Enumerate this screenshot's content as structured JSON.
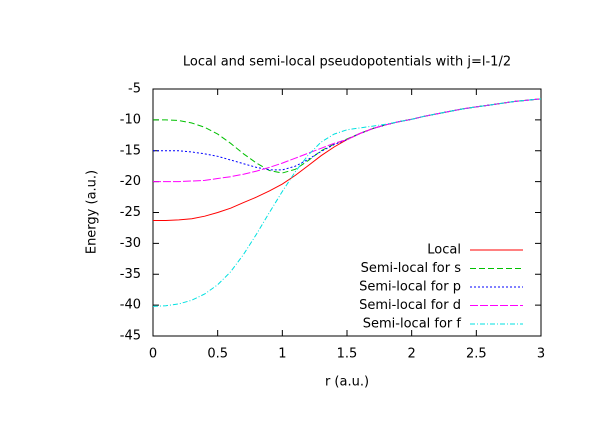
{
  "chart_data": {
    "type": "line",
    "title": "Local and semi-local pseudopotentials with j=l-1/2",
    "x_label": "r (a.u.)",
    "y_label": "Energy (a.u.)",
    "x": [
      0,
      0.1,
      0.2,
      0.3,
      0.4,
      0.5,
      0.6,
      0.7,
      0.8,
      0.9,
      1.0,
      1.1,
      1.2,
      1.3,
      1.4,
      1.5,
      1.6,
      1.7,
      1.8,
      1.9,
      2.0,
      2.1,
      2.2,
      2.3,
      2.4,
      2.5,
      2.6,
      2.7,
      2.8,
      2.9,
      3.0
    ],
    "series": [
      {
        "name": "Local",
        "color": "#ff0000",
        "dash": "none",
        "values": [
          -26.3,
          -26.3,
          -26.2,
          -26.0,
          -25.6,
          -25.0,
          -24.3,
          -23.4,
          -22.5,
          -21.5,
          -20.4,
          -19.0,
          -17.4,
          -15.8,
          -14.4,
          -13.2,
          -12.2,
          -11.4,
          -10.8,
          -10.3,
          -9.9,
          -9.4,
          -9.0,
          -8.6,
          -8.2,
          -7.9,
          -7.6,
          -7.3,
          -7.0,
          -6.8,
          -6.6
        ]
      },
      {
        "name": "Semi-local for s",
        "color": "#00c000",
        "dash": "6,3",
        "values": [
          -10.0,
          -10.0,
          -10.1,
          -10.5,
          -11.2,
          -12.3,
          -13.8,
          -15.5,
          -17.0,
          -18.2,
          -18.6,
          -18.0,
          -16.6,
          -15.0,
          -13.9,
          -13.1,
          -12.2,
          -11.4,
          -10.8,
          -10.3,
          -9.9,
          -9.4,
          -9.0,
          -8.6,
          -8.2,
          -7.9,
          -7.6,
          -7.3,
          -7.0,
          -6.8,
          -6.6
        ]
      },
      {
        "name": "Semi-local for p",
        "color": "#0000ff",
        "dash": "2,2",
        "values": [
          -15.0,
          -15.0,
          -15.0,
          -15.2,
          -15.5,
          -15.9,
          -16.5,
          -17.1,
          -17.7,
          -18.1,
          -18.1,
          -17.5,
          -16.4,
          -15.1,
          -14.0,
          -13.2,
          -12.2,
          -11.4,
          -10.8,
          -10.3,
          -9.9,
          -9.4,
          -9.0,
          -8.6,
          -8.2,
          -7.9,
          -7.6,
          -7.3,
          -7.0,
          -6.8,
          -6.6
        ]
      },
      {
        "name": "Semi-local for d",
        "color": "#ff00ff",
        "dash": "8,2",
        "values": [
          -20.0,
          -20.0,
          -20.0,
          -19.9,
          -19.8,
          -19.5,
          -19.2,
          -18.8,
          -18.3,
          -17.7,
          -17.0,
          -16.2,
          -15.4,
          -14.6,
          -13.8,
          -13.2,
          -12.2,
          -11.4,
          -10.8,
          -10.3,
          -9.9,
          -9.4,
          -9.0,
          -8.6,
          -8.2,
          -7.9,
          -7.6,
          -7.3,
          -7.0,
          -6.8,
          -6.6
        ]
      },
      {
        "name": "Semi-local for f",
        "color": "#00e0e0",
        "dash": "5,2,1,2",
        "values": [
          -40.2,
          -40.1,
          -39.8,
          -39.2,
          -38.2,
          -36.7,
          -34.6,
          -31.8,
          -28.5,
          -25.0,
          -21.6,
          -18.4,
          -15.7,
          -13.6,
          -12.3,
          -11.6,
          -11.3,
          -11.0,
          -10.7,
          -10.3,
          -9.9,
          -9.4,
          -9.0,
          -8.6,
          -8.2,
          -7.9,
          -7.6,
          -7.3,
          -7.0,
          -6.8,
          -6.6
        ]
      }
    ],
    "xlim": [
      0,
      3
    ],
    "xticks": [
      0,
      0.5,
      1,
      1.5,
      2,
      2.5,
      3
    ],
    "ylim": [
      -45,
      -5
    ],
    "yticks": [
      -45,
      -40,
      -35,
      -30,
      -25,
      -20,
      -15,
      -10,
      -5
    ],
    "grid": false,
    "legend": "bottom-right"
  }
}
